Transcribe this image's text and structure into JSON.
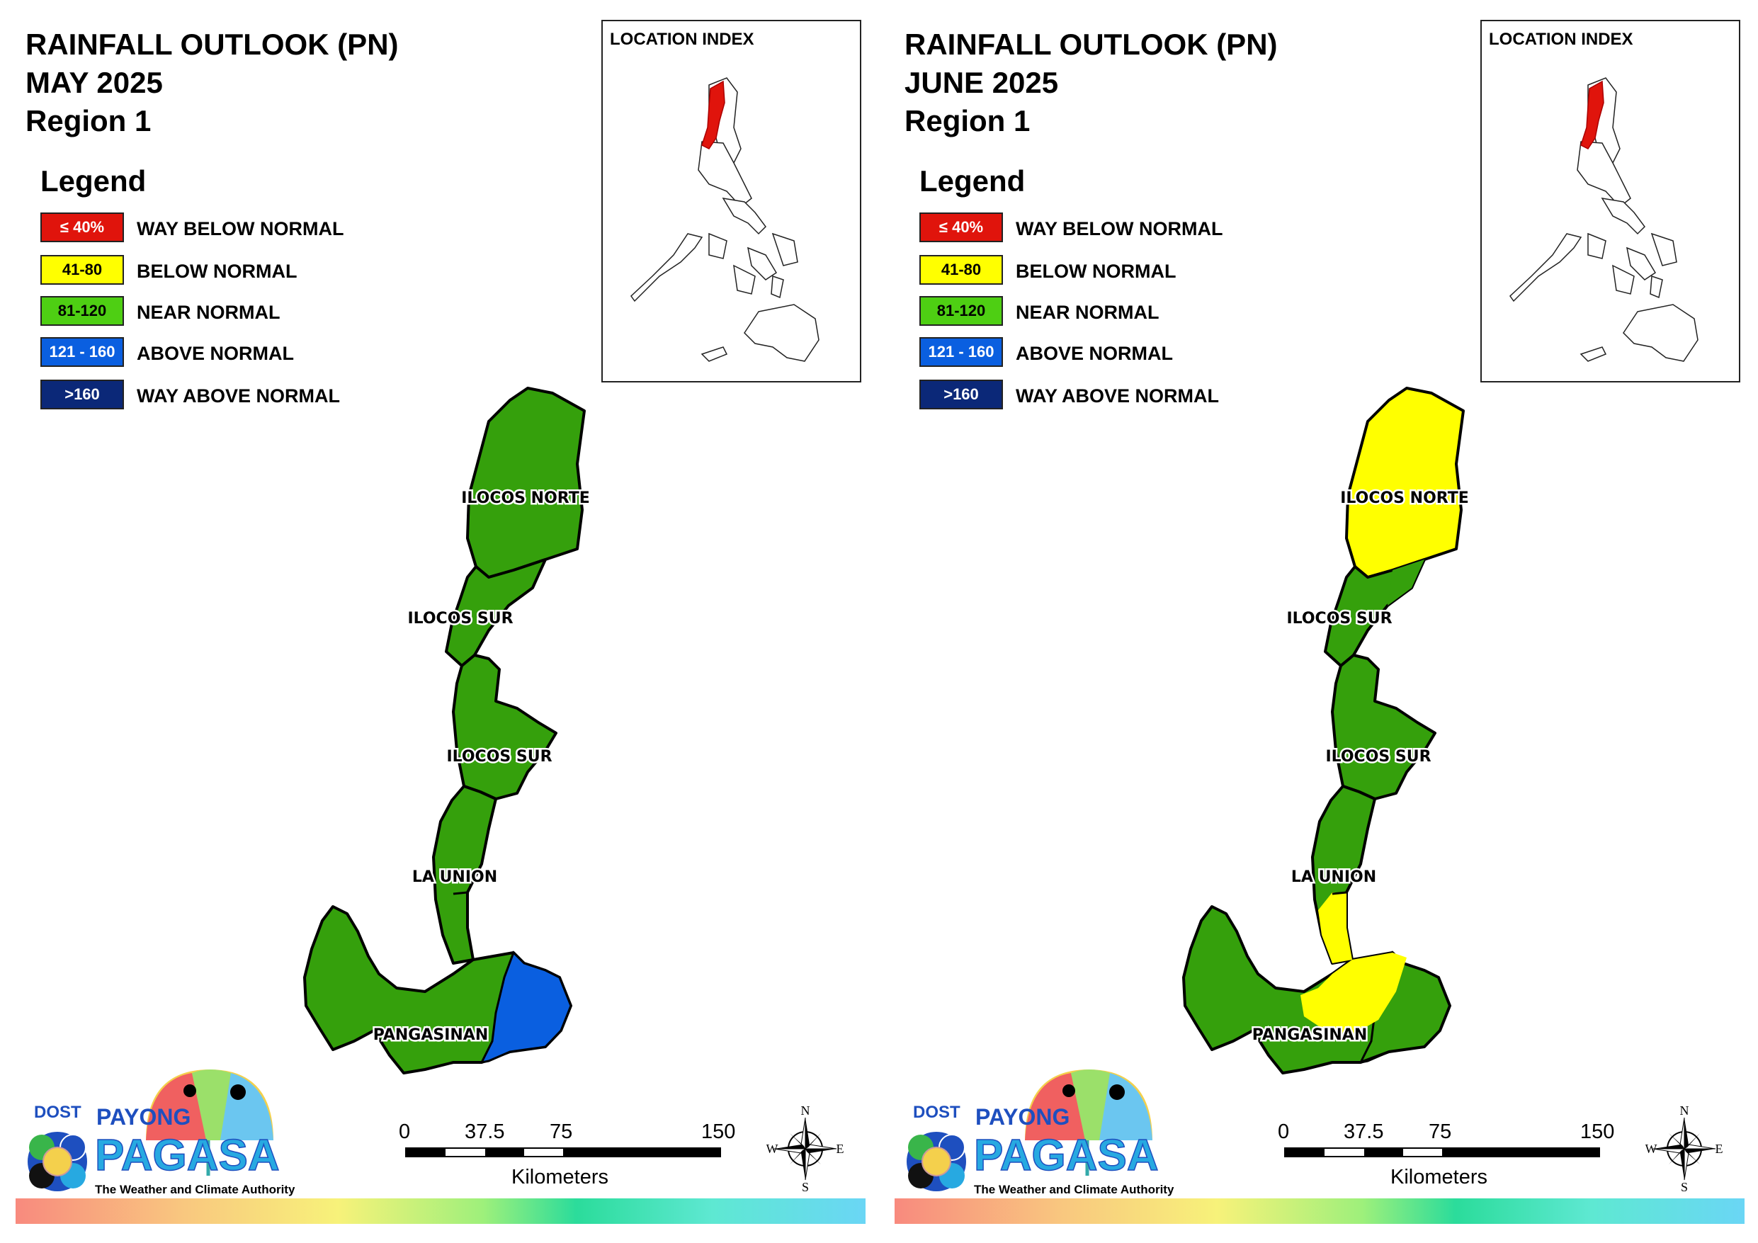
{
  "maps": [
    {
      "title_line1": "RAINFALL OUTLOOK (PN)",
      "title_line2": "MAY 2025",
      "title_line3": "Region 1",
      "legend_title": "Legend",
      "inset_title": "LOCATION INDEX",
      "provinces": [
        {
          "label": "ILOCOS NORTE",
          "category": "near"
        },
        {
          "label": "ILOCOS SUR",
          "category": "near"
        },
        {
          "label": "ILOCOS SUR",
          "category": "near"
        },
        {
          "label": "LA UNION",
          "category": "near"
        },
        {
          "label": "PANGASINAN",
          "category": "near",
          "east_part": "above"
        }
      ]
    },
    {
      "title_line1": "RAINFALL OUTLOOK (PN)",
      "title_line2": "JUNE 2025",
      "title_line3": "Region 1",
      "legend_title": "Legend",
      "inset_title": "LOCATION INDEX",
      "provinces": [
        {
          "label": "ILOCOS NORTE",
          "category": "below"
        },
        {
          "label": "ILOCOS SUR",
          "category": "near"
        },
        {
          "label": "ILOCOS SUR",
          "category": "near"
        },
        {
          "label": "LA UNION",
          "category": "near",
          "south_part": "below"
        },
        {
          "label": "PANGASINAN",
          "category": "near",
          "center_part": "below"
        }
      ]
    }
  ],
  "legend": [
    {
      "range": "≤ 40%",
      "label": "WAY BELOW NORMAL",
      "color": "#e0140c",
      "text_color": "#ffffff"
    },
    {
      "range": "41-80",
      "label": "BELOW NORMAL",
      "color": "#ffff00",
      "text_color": "#000000"
    },
    {
      "range": "81-120",
      "label": "NEAR NORMAL",
      "color": "#4ecf13",
      "text_color": "#000000"
    },
    {
      "range": "121 - 160",
      "label": "ABOVE NORMAL",
      "color": "#0a5fe0",
      "text_color": "#ffffff"
    },
    {
      "range": ">160",
      "label": "WAY ABOVE NORMAL",
      "color": "#0b2878",
      "text_color": "#ffffff"
    }
  ],
  "category_colors": {
    "below": "#ffff00",
    "near": "#35a00c",
    "above": "#0a5fe0"
  },
  "scale": {
    "ticks": [
      "0",
      "37.5",
      "75",
      "150"
    ],
    "unit": "Kilometers"
  },
  "compass": {
    "n": "N",
    "s": "S",
    "e": "E",
    "w": "W"
  },
  "logo": {
    "dost": "DOST",
    "payong": "PAYONG",
    "pagasa": "PAGASA",
    "tagline": "The Weather and Climate Authority"
  }
}
